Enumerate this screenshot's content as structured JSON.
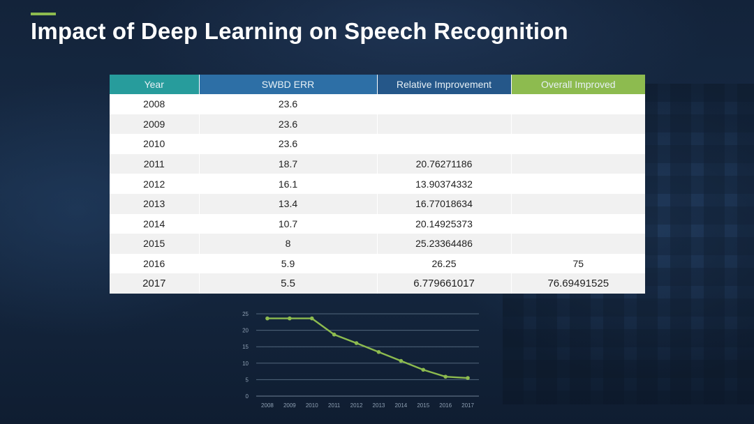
{
  "title": "Impact of Deep Learning on Speech Recognition",
  "colors": {
    "accent": "#8dbb4f",
    "header_year": "#279c9c",
    "header_swbd": "#2d6fa6",
    "header_relative": "#255789",
    "header_overall": "#8dbb4f",
    "line": "#8dbb4f"
  },
  "table": {
    "headers": [
      "Year",
      "SWBD ERR",
      "Relative Improvement",
      "Overall Improved"
    ],
    "rows": [
      [
        "2008",
        "23.6",
        "",
        ""
      ],
      [
        "2009",
        "23.6",
        "",
        ""
      ],
      [
        "2010",
        "23.6",
        "",
        ""
      ],
      [
        "2011",
        "18.7",
        "20.76271186",
        ""
      ],
      [
        "2012",
        "16.1",
        "13.90374332",
        ""
      ],
      [
        "2013",
        "13.4",
        "16.77018634",
        ""
      ],
      [
        "2014",
        "10.7",
        "20.14925373",
        ""
      ],
      [
        "2015",
        "8",
        "25.23364486",
        ""
      ],
      [
        "2016",
        "5.9",
        "26.25",
        "75"
      ],
      [
        "2017",
        "5.5",
        "6.779661017",
        "76.69491525"
      ]
    ]
  },
  "chart_data": {
    "type": "line",
    "categories": [
      "2008",
      "2009",
      "2010",
      "2011",
      "2012",
      "2013",
      "2014",
      "2015",
      "2016",
      "2017"
    ],
    "series": [
      {
        "values": [
          23.6,
          23.6,
          23.6,
          18.7,
          16.1,
          13.4,
          10.7,
          8,
          5.9,
          5.5
        ]
      }
    ],
    "yticks": [
      0,
      5,
      10,
      15,
      20,
      25
    ],
    "ylim": [
      0,
      25
    ],
    "grid": true,
    "title": "",
    "xlabel": "",
    "ylabel": ""
  }
}
